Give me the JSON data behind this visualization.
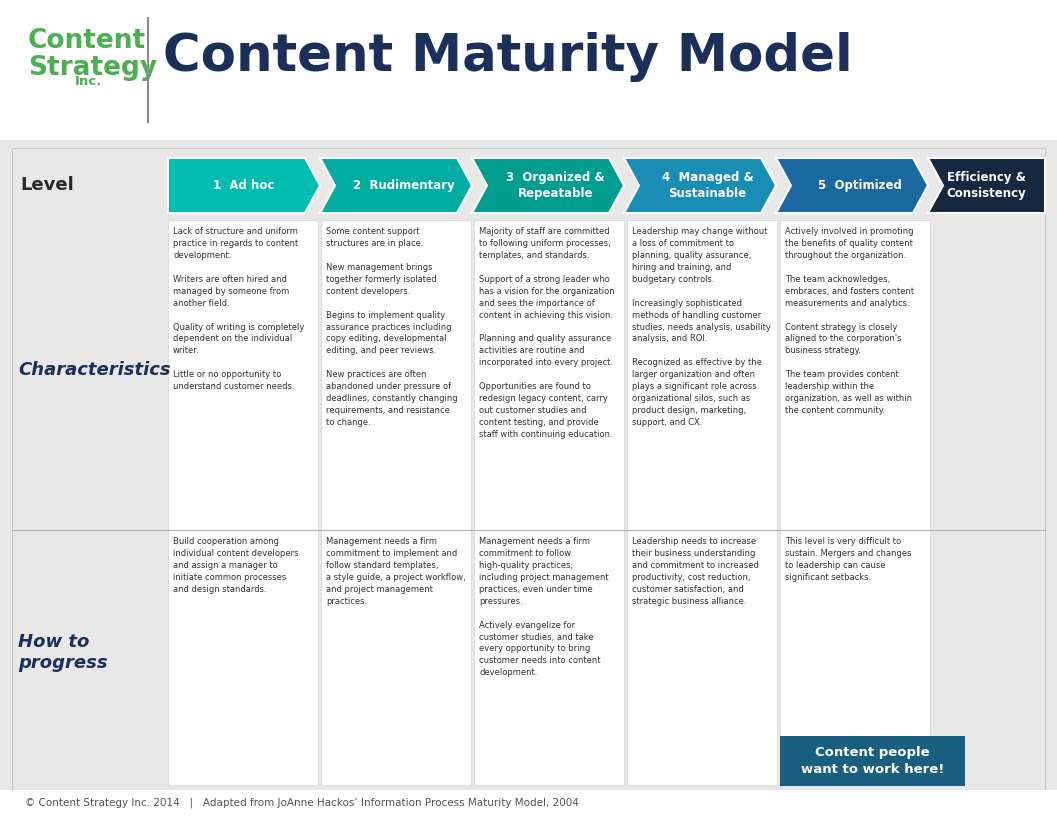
{
  "title": "Content Maturity Model",
  "bg_color": "#e8e8e8",
  "green_color": "#4caf50",
  "dark_blue": "#1a2f5a",
  "arrow_colors": [
    "#00bdb0",
    "#00ada0",
    "#009d8f",
    "#1a8db5",
    "#1a68a0",
    "#152840"
  ],
  "level_labels": [
    "1  Ad hoc",
    "2  Rudimentary",
    "3  Organized &\nRepeatable",
    "4  Managed &\nSustainable",
    "5  Optimized",
    "Efficiency &\nConsistency"
  ],
  "characteristics": [
    "Lack of structure and uniform\npractice in regards to content\ndevelopment.\n\nWriters are often hired and\nmanaged by someone from\nanother field.\n\nQuality of writing is completely\ndependent on the individual\nwriter.\n\nLittle or no opportunity to\nunderstand customer needs.",
    "Some content support\nstructures are in place.\n\nNew management brings\ntogether formerly isolated\ncontent developers.\n\nBegins to implement quality\nassurance practices including\ncopy editing, developmental\nediting, and peer reviews.\n\nNew practices are often\nabandoned under pressure of\ndeadlines, constantly changing\nrequirements, and resistance\nto change.",
    "Majority of staff are committed\nto following uniform processes,\ntemplates, and standards.\n\nSupport of a strong leader who\nhas a vision for the organization\nand sees the importance of\ncontent in achieving this vision.\n\nPlanning and quality assurance\nactivities are routine and\nincorporated into every project.\n\nOpportunities are found to\nredesign legacy content, carry\nout customer studies and\ncontent testing, and provide\nstaff with continuing education.",
    "Leadership may change without\na loss of commitment to\nplanning, quality assurance,\nhiring and training, and\nbudgetary controls.\n\nIncreasingly sophisticated\nmethods of handling customer\nstudies, needs analysis, usability\nanalysis, and ROI.\n\nRecognized as effective by the\nlarger organization and often\nplays a significant role across\norganizational silos, such as\nproduct design, marketing,\nsupport, and CX.",
    "Actively involved in promoting\nthe benefits of quality content\nthroughout the organization.\n\nThe team acknowledges,\nembraces, and fosters content\nmeasurements and analytics.\n\nContent strategy is closely\naligned to the corporation's\nbusiness strategy.\n\nThe team provides content\nleadership within the\norganization, as well as within\nthe content community."
  ],
  "how_to_progress": [
    "Build cooperation among\nindividual content developers\nand assign a manager to\ninitiate common processes\nand design standards.",
    "Management needs a firm\ncommitment to implement and\nfollow standard templates,\na style guide, a project workflow,\nand project management\npractices.",
    "Management needs a firm\ncommitment to follow\nhigh-quality practices,\nincluding project management\npractices, even under time\npressures.\n\nActively evangelize for\ncustomer studies, and take\nevery opportunity to bring\ncustomer needs into content\ndevelopment.",
    "Leadership needs to increase\ntheir business understanding\nand commitment to increased\nproductivity, cost reduction,\ncustomer satisfaction, and\nstrategic business alliance.",
    "This level is very difficult to\nsustain. Mergers and changes\nto leadership can cause\nsignificant setbacks."
  ],
  "footer_text": "© Content Strategy Inc. 2014   |   Adapted from JoAnne Hackos’ Information Process Maturity Model, 2004",
  "cta_text": "Content people\nwant to work here!",
  "cta_color": "#1a5f80"
}
